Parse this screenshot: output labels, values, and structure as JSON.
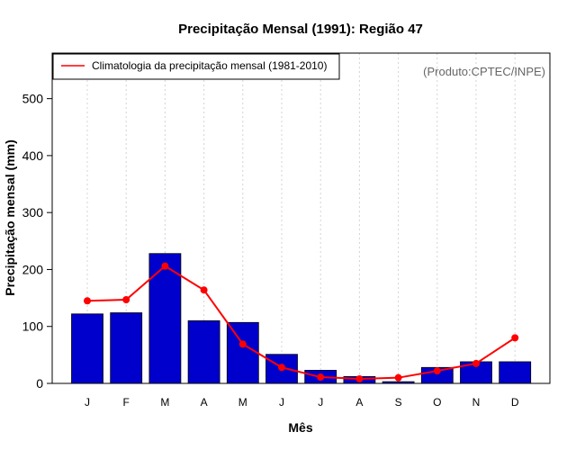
{
  "chart_data": {
    "type": "bar",
    "title": "Precipitação Mensal (1991): Região 47",
    "xlabel": "Mês",
    "ylabel": "Precipitação mensal (mm)",
    "ylim": [
      0,
      580
    ],
    "yticks": [
      0,
      100,
      200,
      300,
      400,
      500
    ],
    "categories": [
      "J",
      "F",
      "M",
      "A",
      "M",
      "J",
      "J",
      "A",
      "S",
      "O",
      "N",
      "D"
    ],
    "series": [
      {
        "name": "Precipitação mensal (1991)",
        "type": "bar",
        "color": "#0000cc",
        "values": [
          122,
          124,
          228,
          110,
          107,
          51,
          23,
          12,
          3,
          28,
          38,
          38
        ]
      },
      {
        "name": "Climatologia da precipitação mensal (1981-2010)",
        "type": "line",
        "color": "#ff0000",
        "values": [
          145,
          147,
          206,
          164,
          69,
          28,
          11,
          8,
          10,
          22,
          35,
          80
        ]
      }
    ],
    "legend": {
      "position": "top-left",
      "entries": [
        "Climatologia da precipitação mensal (1981-2010)"
      ]
    },
    "annotation": "(Produto:CPTEC/INPE)",
    "grid": "vertical dotted"
  }
}
